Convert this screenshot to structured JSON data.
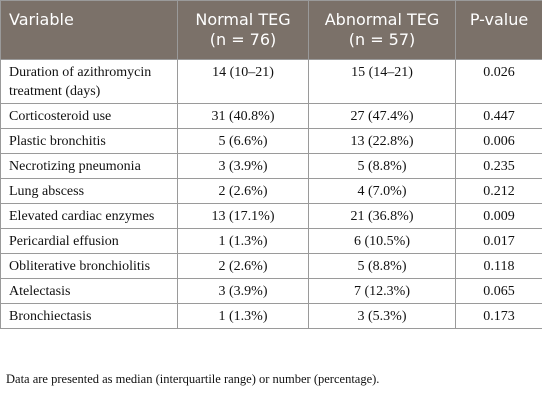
{
  "table": {
    "header": [
      [
        "Variable"
      ],
      [
        "Normal TEG",
        "(n = 76)"
      ],
      [
        "Abnormal TEG",
        "(n = 57)"
      ],
      [
        "P-value"
      ]
    ],
    "rows": [
      [
        "Duration of azithromycin treatment (days)",
        "14 (10–21)",
        "15 (14–21)",
        "0.026"
      ],
      [
        "Corticosteroid use",
        "31 (40.8%)",
        "27 (47.4%)",
        "0.447"
      ],
      [
        "Plastic bronchitis",
        "5 (6.6%)",
        "13 (22.8%)",
        "0.006"
      ],
      [
        "Necrotizing pneumonia",
        "3 (3.9%)",
        "5 (8.8%)",
        "0.235"
      ],
      [
        "Lung abscess",
        "2 (2.6%)",
        "4 (7.0%)",
        "0.212"
      ],
      [
        "Elevated cardiac enzymes",
        "13 (17.1%)",
        "21 (36.8%)",
        "0.009"
      ],
      [
        "Pericardial effusion",
        "1 (1.3%)",
        "6 (10.5%)",
        "0.017"
      ],
      [
        "Obliterative bronchiolitis",
        "2 (2.6%)",
        "5 (8.8%)",
        "0.118"
      ],
      [
        "Atelectasis",
        "3 (3.9%)",
        "7 (12.3%)",
        "0.065"
      ],
      [
        "Bronchiectasis",
        "1 (1.3%)",
        "3 (5.3%)",
        "0.173"
      ]
    ]
  },
  "footnote": "Data are presented as median (interquartile range) or number (percentage)."
}
